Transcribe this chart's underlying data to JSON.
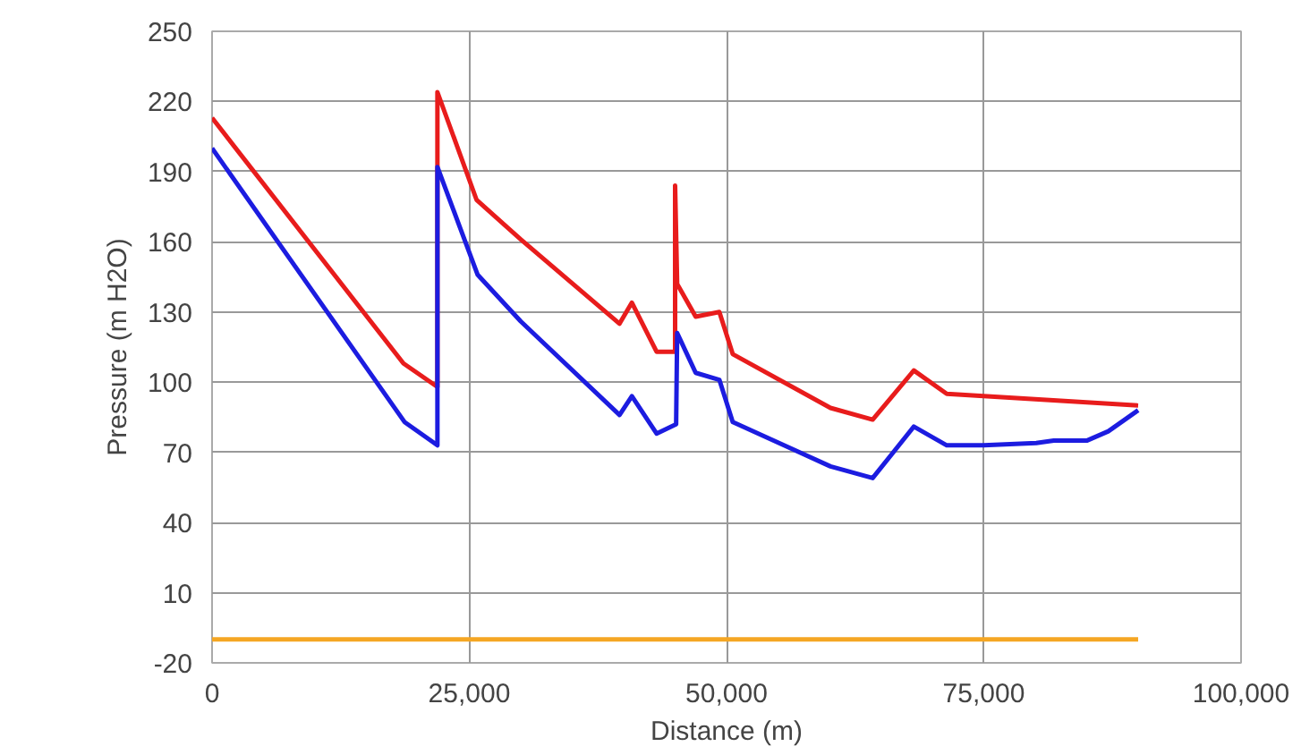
{
  "chart_data": {
    "type": "line",
    "xlabel": "Distance (m)",
    "ylabel": "Pressure (m H2O)",
    "xlim": [
      0,
      100000
    ],
    "ylim": [
      -20,
      250
    ],
    "xticks": [
      0,
      {
        "value": 25000,
        "label": "25,000"
      },
      {
        "value": 50000,
        "label": "50,000"
      },
      {
        "value": 75000,
        "label": "75,000"
      },
      {
        "value": 100000,
        "label": "100,000"
      }
    ],
    "yticks": [
      -20,
      10,
      40,
      70,
      100,
      130,
      160,
      190,
      220,
      250
    ],
    "grid": true,
    "marker": "none",
    "line_style": "solid",
    "series": [
      {
        "color": "#e81c1c",
        "x": [
          0,
          18600,
          21900,
          21900,
          25700,
          30000,
          39600,
          40800,
          43200,
          45000,
          45000,
          45200,
          47000,
          49300,
          50600,
          60100,
          64200,
          68200,
          71400,
          90000
        ],
        "values": [
          213,
          108,
          98,
          224,
          178,
          161,
          125,
          134,
          113,
          113,
          184,
          142,
          128,
          130,
          112,
          89,
          84,
          105,
          95,
          90
        ]
      },
      {
        "color": "#1c1ce0",
        "x": [
          0,
          18700,
          21900,
          21900,
          25800,
          30000,
          39600,
          40800,
          43200,
          45100,
          45200,
          47000,
          49300,
          50600,
          60100,
          64200,
          68200,
          71400,
          75000,
          80100,
          81800,
          85000,
          87100,
          90000
        ],
        "values": [
          200,
          83,
          73,
          192,
          146,
          126,
          86,
          94,
          78,
          82,
          121,
          104,
          101,
          83,
          64,
          59,
          81,
          73,
          73,
          74,
          75,
          75,
          79,
          88
        ]
      },
      {
        "color": "#f5a623",
        "x": [
          0,
          90000
        ],
        "values": [
          -10,
          -10
        ]
      }
    ]
  }
}
